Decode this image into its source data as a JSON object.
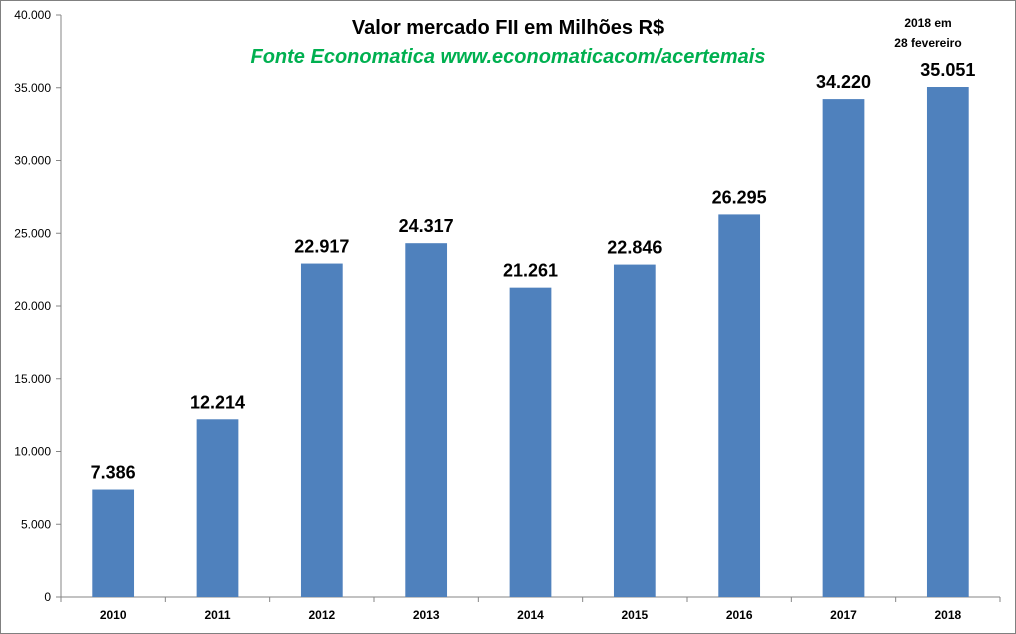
{
  "colors": {
    "bar": "#4f81bd",
    "subtitle": "#00b050",
    "axis": "#868686"
  },
  "chart_data": {
    "type": "bar",
    "title": "Valor mercado FII em Milhões R$",
    "subtitle": "Fonte Economatica www.economaticacom/acertemais",
    "note_line1": "2018 em",
    "note_line2": "28 fevereiro",
    "categories": [
      "2010",
      "2011",
      "2012",
      "2013",
      "2014",
      "2015",
      "2016",
      "2017",
      "2018"
    ],
    "values": [
      7386,
      12214,
      22917,
      24317,
      21261,
      22846,
      26295,
      34220,
      35051
    ],
    "data_labels": [
      "7.386",
      "12.214",
      "22.917",
      "24.317",
      "21.261",
      "22.846",
      "26.295",
      "34.220",
      "35.051"
    ],
    "ylim": [
      0,
      40000
    ],
    "yticks": [
      0,
      5000,
      10000,
      15000,
      20000,
      25000,
      30000,
      35000,
      40000
    ],
    "ytick_labels": [
      "0",
      "5.000",
      "10.000",
      "15.000",
      "20.000",
      "25.000",
      "30.000",
      "35.000",
      "40.000"
    ],
    "xlabel": "",
    "ylabel": "",
    "grid": false,
    "legend": "none"
  }
}
